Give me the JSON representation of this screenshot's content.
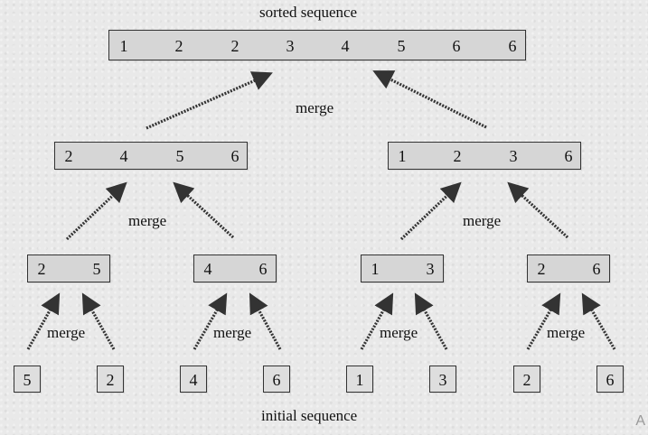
{
  "title": "sorted sequence",
  "footer": "initial sequence",
  "merge_label": "merge",
  "corner_mark": "A",
  "levels": {
    "sorted": [
      1,
      2,
      2,
      3,
      4,
      5,
      6,
      6
    ],
    "level2": [
      [
        2,
        4,
        5,
        6
      ],
      [
        1,
        2,
        3,
        6
      ]
    ],
    "level1": [
      [
        2,
        5
      ],
      [
        4,
        6
      ],
      [
        1,
        3
      ],
      [
        2,
        6
      ]
    ],
    "initial": [
      5,
      2,
      4,
      6,
      1,
      3,
      2,
      6
    ]
  }
}
